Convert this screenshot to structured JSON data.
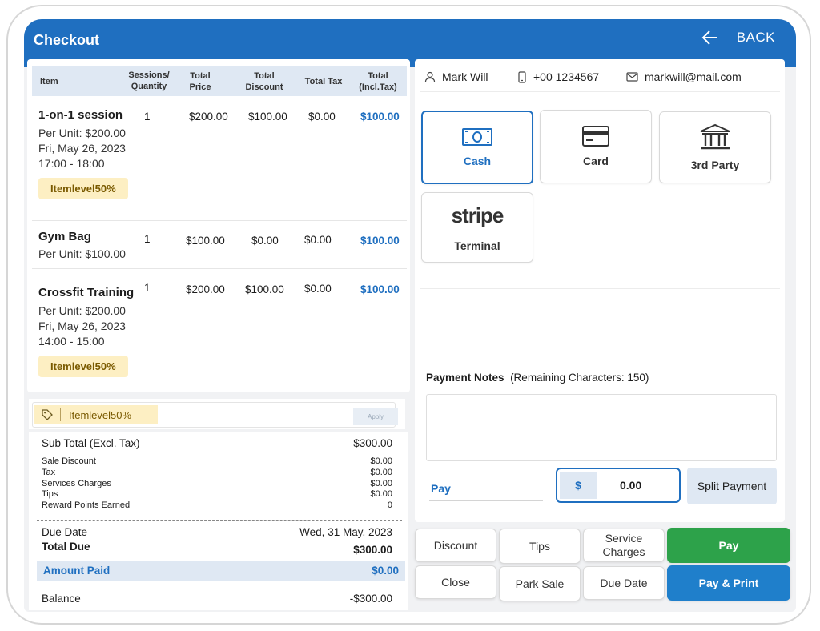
{
  "header": {
    "title": "Checkout",
    "back_label": "BACK"
  },
  "table": {
    "headers": {
      "item": "Item",
      "qty_1": "Sessions/",
      "qty_2": "Quantity",
      "price_1": "Total",
      "price_2": "Price",
      "disc_1": "Total",
      "disc_2": "Discount",
      "tax": "Total Tax",
      "incl_1": "Total",
      "incl_2": "(Incl.Tax)"
    },
    "rows": [
      {
        "name": "1-on-1 session",
        "per_unit": "Per Unit: $200.00",
        "date": "Fri, May 26, 2023",
        "time": "17:00 - 18:00",
        "tag": "Itemlevel50%",
        "qty": "1",
        "price": "$200.00",
        "discount": "$100.00",
        "tax": "$0.00",
        "total": "$100.00"
      },
      {
        "name": "Gym Bag",
        "per_unit": "Per Unit: $100.00",
        "qty": "1",
        "price": "$100.00",
        "discount": "$0.00",
        "tax": "$0.00",
        "total": "$100.00"
      },
      {
        "name": "Crossfit Training",
        "per_unit": "Per Unit: $200.00",
        "date": "Fri, May 26, 2023",
        "time": "14:00 - 15:00",
        "tag": "Itemlevel50%",
        "qty": "1",
        "price": "$200.00",
        "discount": "$100.00",
        "tax": "$0.00",
        "total": "$100.00"
      }
    ]
  },
  "coupon": {
    "code": "Itemlevel50%",
    "apply_label": "Apply"
  },
  "summary": {
    "subtotal_label": "Sub Total (Excl. Tax)",
    "subtotal": "$300.00",
    "lines": [
      {
        "label": "Sale Discount",
        "value": "$0.00"
      },
      {
        "label": "Tax",
        "value": "$0.00"
      },
      {
        "label": "Services Charges",
        "value": "$0.00"
      },
      {
        "label": "Tips",
        "value": "$0.00"
      },
      {
        "label": "Reward Points Earned",
        "value": "0"
      }
    ],
    "due_date_label": "Due Date",
    "due_date": "Wed, 31 May, 2023",
    "total_due_label": "Total Due",
    "total_due": "$300.00",
    "amount_paid_label": "Amount Paid",
    "amount_paid": "$0.00",
    "balance_label": "Balance",
    "balance": "-$300.00"
  },
  "customer": {
    "name": "Mark Will",
    "phone": "+00 1234567",
    "email": "markwill@mail.com"
  },
  "payment_methods": {
    "cash": "Cash",
    "card": "Card",
    "third_party": "3rd Party",
    "stripe_logo": "stripe",
    "terminal": "Terminal"
  },
  "notes": {
    "label": "Payment Notes",
    "remaining": "(Remaining Characters: 150)"
  },
  "pay": {
    "label": "Pay",
    "currency": "$",
    "amount": "0.00",
    "split_label": "Split Payment"
  },
  "actions": {
    "discount": "Discount",
    "tips": "Tips",
    "service_1": "Service",
    "service_2": "Charges",
    "pay": "Pay",
    "close": "Close",
    "park_sale": "Park Sale",
    "due_date": "Due Date",
    "pay_print": "Pay & Print"
  },
  "colors": {
    "primary": "#1f6fc0",
    "tag_bg": "#fdefc3",
    "green": "#2da24a"
  }
}
